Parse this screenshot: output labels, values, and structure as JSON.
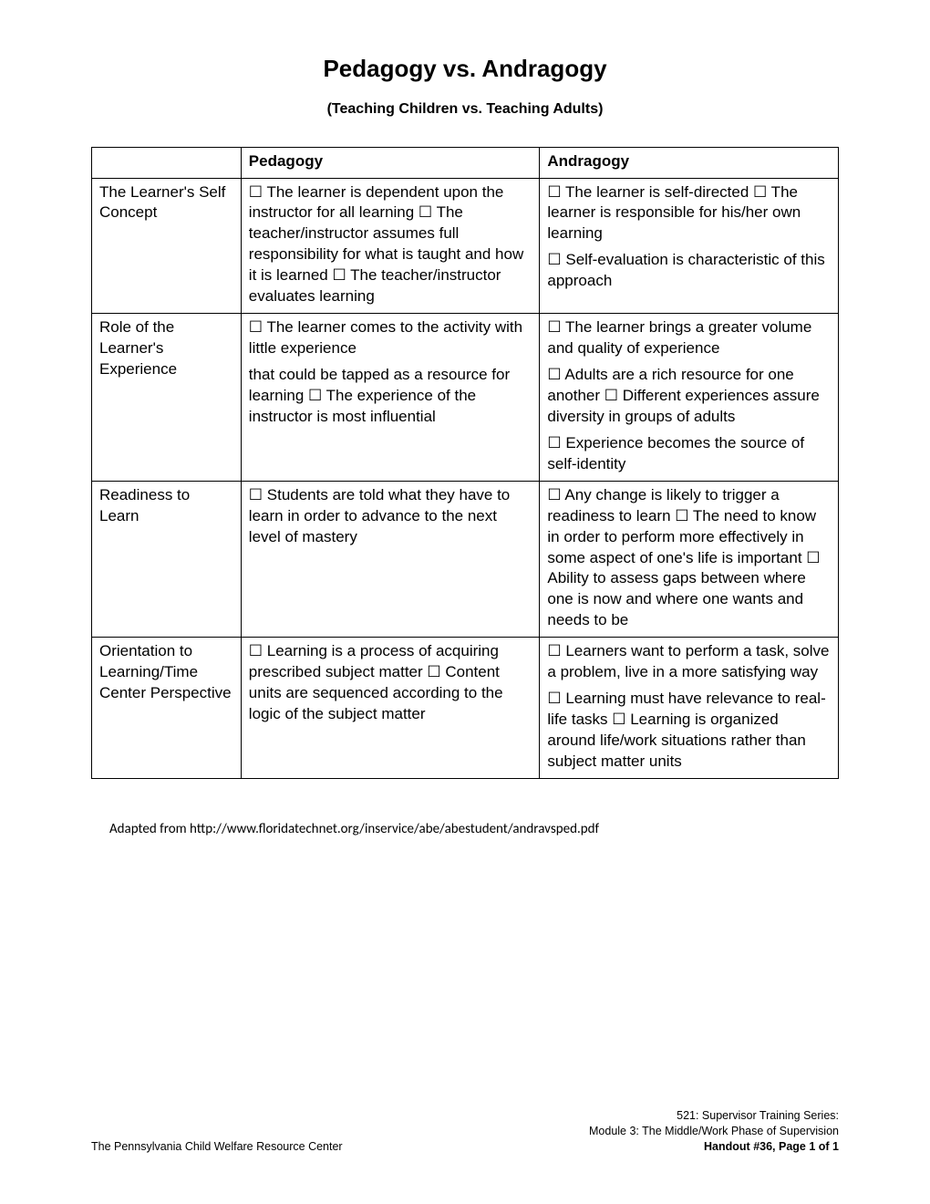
{
  "title": "Pedagogy vs. Andragogy",
  "subtitle": "(Teaching Children vs. Teaching Adults)",
  "bullet_glyph": "☐",
  "columns": [
    "",
    "Pedagogy",
    "Andragogy"
  ],
  "rows": [
    {
      "label": "The Learner's Self Concept",
      "pedagogy": "☐ The learner is dependent upon the instructor for all learning ☐ The teacher/instructor assumes full responsibility for what is taught and how it is learned ☐ The teacher/instructor evaluates learning",
      "andragogy": "☐ The learner is self-directed ☐ The learner is responsible for his/her own learning ☐ Self-evaluation is characteristic of this approach",
      "andragogy_paras": [
        "☐ The learner is self-directed ☐ The learner is responsible for his/her own learning",
        "☐ Self-evaluation is characteristic of this approach"
      ]
    },
    {
      "label": "Role of the Learner's Experience",
      "pedagogy_paras": [
        "☐ The learner comes to the activity with little experience",
        "that could be tapped as a resource for learning ☐ The experience of the instructor is most influential"
      ],
      "andragogy_paras": [
        "☐ The learner brings a greater volume and quality of experience",
        "☐ Adults are a rich resource for one another ☐ Different experiences assure diversity in groups of adults",
        "☐ Experience becomes the source of self-identity"
      ]
    },
    {
      "label": "Readiness to Learn",
      "pedagogy": "☐ Students are told what they have to learn in order to advance to the next level of mastery",
      "andragogy": "☐ Any change is likely to trigger a readiness to learn ☐ The need to know in order to perform more effectively in some aspect of one's life is important ☐ Ability to assess gaps between where one is now and where one wants and needs to be"
    },
    {
      "label": "Orientation to Learning/Time Center Perspective",
      "pedagogy": "☐ Learning is a process of acquiring prescribed subject matter ☐ Content units are sequenced according to the logic of the subject matter",
      "andragogy_paras": [
        "☐ Learners want to perform a task, solve a problem, live in a more satisfying way",
        "☐ Learning must have relevance to real-life tasks ☐ Learning is organized around life/work situations rather than subject matter units"
      ]
    }
  ],
  "adapted": "Adapted from http://www.floridatechnet.org/inservice/abe/abestudent/andravsped.pdf",
  "footer": {
    "left": "The Pennsylvania Child Welfare Resource Center",
    "right_line1": "521: Supervisor Training Series:",
    "right_line2": "Module 3: The Middle/Work Phase of Supervision",
    "right_line3": "Handout #36, Page 1 of 1"
  }
}
